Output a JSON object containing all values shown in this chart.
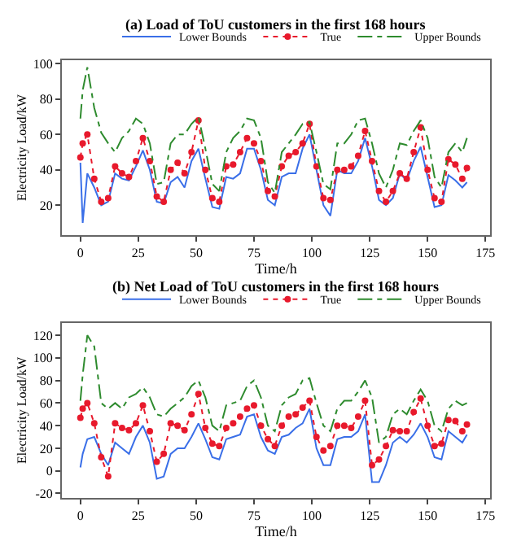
{
  "chart_data": [
    {
      "type": "line",
      "title": "(a) Load of ToU customers in the first 168 hours",
      "xlabel": "Time/h",
      "ylabel": "Electricity Load/kW",
      "x": [
        0,
        1,
        3,
        6,
        9,
        12,
        15,
        18,
        21,
        24,
        27,
        30,
        33,
        36,
        39,
        42,
        45,
        48,
        51,
        54,
        57,
        60,
        63,
        66,
        69,
        72,
        75,
        78,
        81,
        84,
        87,
        90,
        93,
        96,
        99,
        102,
        105,
        108,
        111,
        114,
        117,
        120,
        123,
        126,
        129,
        132,
        135,
        138,
        141,
        144,
        147,
        150,
        153,
        156,
        159,
        162,
        165,
        167
      ],
      "xlim": [
        -8,
        177
      ],
      "xticks": [
        0,
        25,
        50,
        75,
        100,
        125,
        150,
        175
      ],
      "ylim": [
        3,
        102
      ],
      "yticks": [
        20,
        40,
        60,
        80,
        100
      ],
      "legend": "top right",
      "series": [
        {
          "name": "Lower Bounds",
          "color": "#3a6fe8",
          "line_style": "solid",
          "marker": "none",
          "values": [
            44,
            10,
            38,
            30,
            20,
            22,
            38,
            35,
            34,
            42,
            51,
            40,
            22,
            21,
            33,
            36,
            30,
            45,
            52,
            35,
            19,
            18,
            36,
            35,
            38,
            52,
            52,
            40,
            23,
            20,
            36,
            38,
            38,
            52,
            60,
            40,
            20,
            14,
            40,
            38,
            38,
            45,
            58,
            42,
            23,
            20,
            24,
            38,
            34,
            45,
            53,
            36,
            19,
            20,
            37,
            34,
            30,
            33
          ]
        },
        {
          "name": "True",
          "color": "#e8192c",
          "line_style": "dotted",
          "marker": "circle",
          "values": [
            47,
            55,
            60,
            35,
            22,
            24,
            42,
            38,
            36,
            45,
            58,
            45,
            25,
            22,
            40,
            44,
            38,
            50,
            68,
            40,
            24,
            22,
            42,
            43,
            50,
            58,
            55,
            45,
            28,
            25,
            42,
            48,
            50,
            55,
            66,
            42,
            24,
            23,
            40,
            40,
            42,
            48,
            62,
            45,
            28,
            22,
            28,
            38,
            35,
            50,
            64,
            40,
            24,
            22,
            46,
            43,
            35,
            41
          ]
        },
        {
          "name": "Upper Bounds",
          "color": "#2e8b2e",
          "line_style": "dashed",
          "marker": "none",
          "values": [
            69,
            85,
            98,
            75,
            61,
            55,
            50,
            58,
            62,
            69,
            66,
            55,
            32,
            33,
            55,
            60,
            60,
            66,
            70,
            52,
            32,
            28,
            50,
            58,
            62,
            69,
            68,
            58,
            33,
            27,
            50,
            55,
            60,
            66,
            67,
            50,
            32,
            29,
            55,
            55,
            60,
            68,
            69,
            55,
            38,
            30,
            40,
            55,
            54,
            62,
            68,
            58,
            36,
            30,
            50,
            55,
            50,
            58
          ]
        }
      ]
    },
    {
      "type": "line",
      "title": "(b) Net Load of ToU customers in the first 168 hours",
      "xlabel": "Time/h",
      "ylabel": "Electricity Load/kW",
      "x": [
        0,
        1,
        3,
        6,
        9,
        12,
        15,
        18,
        21,
        24,
        27,
        30,
        33,
        36,
        39,
        42,
        45,
        48,
        51,
        54,
        57,
        60,
        63,
        66,
        69,
        72,
        75,
        78,
        81,
        84,
        87,
        90,
        93,
        96,
        99,
        102,
        105,
        108,
        111,
        114,
        117,
        120,
        123,
        126,
        129,
        132,
        135,
        138,
        141,
        144,
        147,
        150,
        153,
        156,
        159,
        162,
        165,
        167
      ],
      "xlim": [
        -8,
        177
      ],
      "xticks": [
        0,
        25,
        50,
        75,
        100,
        125,
        150,
        175
      ],
      "ylim": [
        -24,
        131
      ],
      "yticks": [
        -20,
        0,
        20,
        40,
        60,
        80,
        100,
        120
      ],
      "legend": "top right",
      "series": [
        {
          "name": "Lower Bounds",
          "color": "#3a6fe8",
          "line_style": "solid",
          "marker": "none",
          "values": [
            3,
            15,
            28,
            30,
            15,
            5,
            25,
            20,
            15,
            30,
            40,
            25,
            -7,
            -5,
            15,
            20,
            20,
            30,
            42,
            28,
            12,
            10,
            28,
            30,
            32,
            48,
            50,
            30,
            18,
            15,
            30,
            32,
            38,
            42,
            55,
            20,
            5,
            5,
            28,
            30,
            30,
            35,
            50,
            -10,
            -10,
            5,
            25,
            30,
            25,
            32,
            42,
            30,
            12,
            10,
            35,
            30,
            25,
            32
          ]
        },
        {
          "name": "True",
          "color": "#e8192c",
          "line_style": "dotted",
          "marker": "circle",
          "values": [
            47,
            55,
            60,
            42,
            12,
            -5,
            42,
            38,
            36,
            42,
            58,
            35,
            8,
            15,
            42,
            40,
            36,
            50,
            68,
            38,
            24,
            22,
            38,
            42,
            48,
            55,
            58,
            40,
            28,
            22,
            40,
            48,
            50,
            56,
            62,
            30,
            18,
            22,
            40,
            40,
            38,
            48,
            62,
            5,
            10,
            22,
            36,
            35,
            35,
            52,
            64,
            40,
            22,
            24,
            45,
            44,
            35,
            41
          ]
        },
        {
          "name": "Upper Bounds",
          "color": "#2e8b2e",
          "line_style": "dashed",
          "marker": "none",
          "values": [
            62,
            85,
            120,
            110,
            60,
            55,
            60,
            55,
            65,
            68,
            74,
            65,
            50,
            48,
            55,
            60,
            65,
            75,
            80,
            65,
            40,
            35,
            58,
            60,
            62,
            75,
            80,
            65,
            40,
            35,
            58,
            65,
            68,
            80,
            82,
            60,
            40,
            35,
            55,
            62,
            62,
            70,
            80,
            65,
            25,
            30,
            50,
            55,
            50,
            62,
            72,
            62,
            40,
            35,
            55,
            62,
            58,
            60
          ]
        }
      ]
    }
  ]
}
